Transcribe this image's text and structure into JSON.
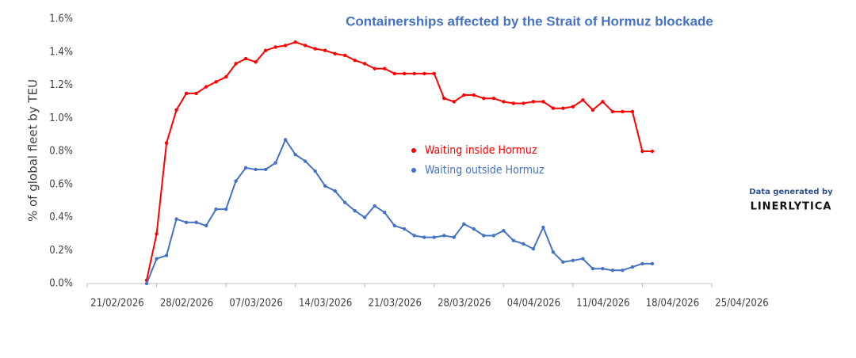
{
  "chart_data": {
    "type": "line",
    "title": "Containerships affected by the Strait of Hormuz blockade",
    "y_label": "% of global fleet by TEU",
    "annotations": [
      "Data generated by",
      "LINERLYTICA"
    ],
    "x": [
      "27/02/2026",
      "28/02/2026",
      "01/03/2026",
      "02/03/2026",
      "03/03/2026",
      "04/03/2026",
      "05/03/2026",
      "06/03/2026",
      "07/03/2026",
      "08/03/2026",
      "09/03/2026",
      "10/03/2026",
      "11/03/2026",
      "12/03/2026",
      "13/03/2026",
      "14/03/2026",
      "15/03/2026",
      "16/03/2026",
      "17/03/2026",
      "18/03/2026",
      "19/03/2026",
      "20/03/2026",
      "21/03/2026",
      "22/03/2026",
      "23/03/2026",
      "24/03/2026",
      "25/03/2026",
      "26/03/2026",
      "27/03/2026",
      "28/03/2026",
      "29/03/2026",
      "30/03/2026",
      "31/03/2026",
      "01/04/2026",
      "02/04/2026",
      "03/04/2026",
      "04/04/2026",
      "05/04/2026",
      "06/04/2026",
      "07/04/2026",
      "08/04/2026",
      "09/04/2026",
      "10/04/2026",
      "11/04/2026",
      "12/04/2026",
      "13/04/2026",
      "14/04/2026",
      "15/04/2026",
      "16/04/2026",
      "17/04/2026",
      "18/04/2026",
      "19/04/2026"
    ],
    "series": [
      {
        "name": "Waiting inside Hormuz",
        "color": "#ff0000",
        "values": [
          0.02,
          0.3,
          0.85,
          1.05,
          1.15,
          1.15,
          1.19,
          1.22,
          1.25,
          1.33,
          1.36,
          1.34,
          1.41,
          1.43,
          1.44,
          1.46,
          1.44,
          1.42,
          1.41,
          1.39,
          1.38,
          1.35,
          1.33,
          1.3,
          1.3,
          1.27,
          1.27,
          1.27,
          1.27,
          1.27,
          1.12,
          1.1,
          1.14,
          1.14,
          1.12,
          1.12,
          1.1,
          1.09,
          1.09,
          1.1,
          1.1,
          1.06,
          1.06,
          1.07,
          1.11,
          1.05,
          1.1,
          1.04,
          1.04,
          1.04,
          0.8,
          0.8
        ]
      },
      {
        "name": "Waiting outside Hormuz",
        "color": "#4472c4",
        "values": [
          0.0,
          0.15,
          0.17,
          0.39,
          0.37,
          0.37,
          0.35,
          0.45,
          0.45,
          0.62,
          0.7,
          0.69,
          0.69,
          0.73,
          0.87,
          0.78,
          0.74,
          0.68,
          0.59,
          0.56,
          0.49,
          0.44,
          0.4,
          0.47,
          0.43,
          0.35,
          0.33,
          0.29,
          0.28,
          0.28,
          0.29,
          0.28,
          0.36,
          0.33,
          0.29,
          0.29,
          0.32,
          0.26,
          0.24,
          0.21,
          0.34,
          0.19,
          0.13,
          0.14,
          0.15,
          0.09,
          0.09,
          0.08,
          0.08,
          0.1,
          0.12,
          0.12
        ]
      }
    ],
    "xlim": [
      "21/02/2026",
      "25/04/2026"
    ],
    "xticks": [
      "21/02/2026",
      "28/02/2026",
      "07/03/2026",
      "14/03/2026",
      "21/03/2026",
      "28/03/2026",
      "04/04/2026",
      "11/04/2026",
      "18/04/2026",
      "25/04/2026"
    ],
    "ylim": [
      0,
      1.6
    ],
    "yticks": [
      {
        "value": 0,
        "label": "0.0%"
      },
      {
        "value": 0.2,
        "label": "0.2%"
      },
      {
        "value": 0.4,
        "label": "0.4%"
      },
      {
        "value": 0.6,
        "label": "0.6%"
      },
      {
        "value": 0.8,
        "label": "0.8%"
      },
      {
        "value": 1.0,
        "label": "1.0%"
      },
      {
        "value": 1.2,
        "label": "1.2%"
      },
      {
        "value": 1.4,
        "label": "1.4%"
      },
      {
        "value": 1.6,
        "label": "1.6%"
      }
    ],
    "grid": false,
    "legend": "center"
  }
}
